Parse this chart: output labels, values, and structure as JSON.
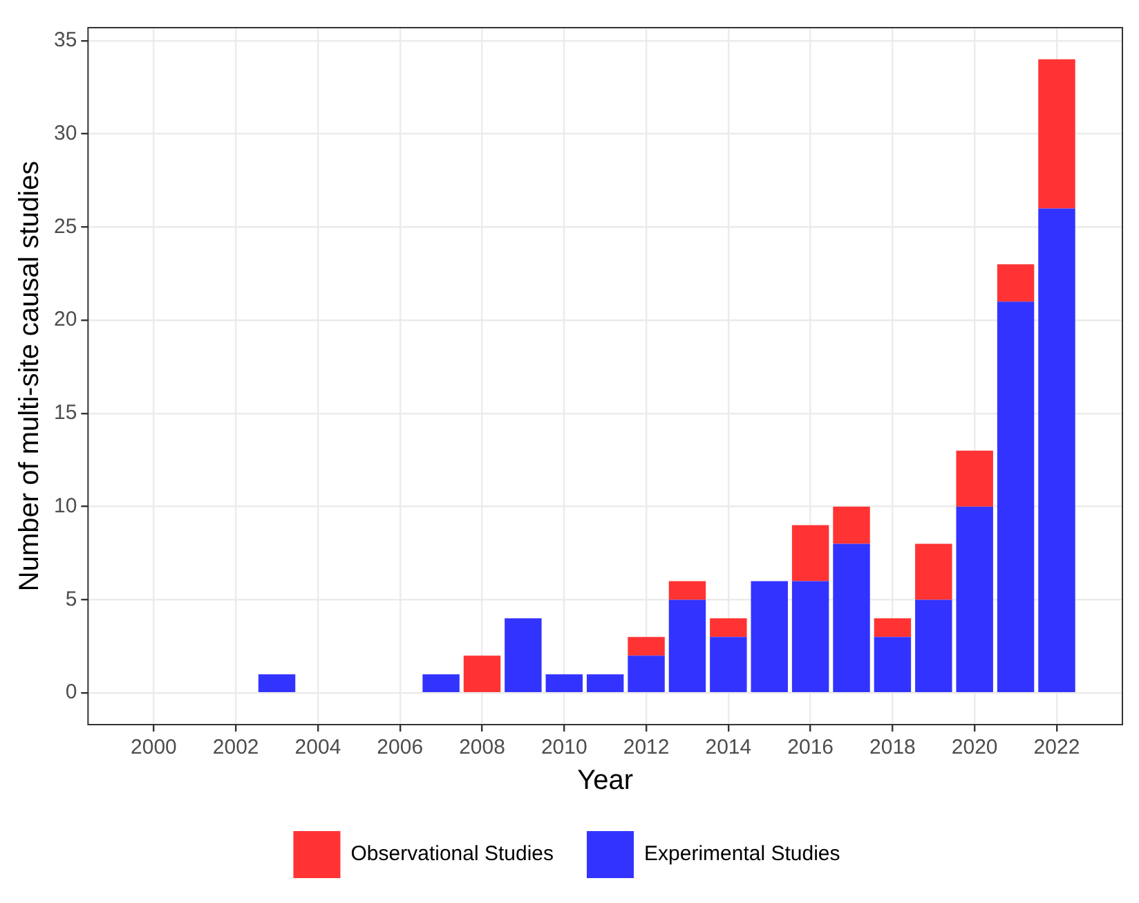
{
  "chart_data": {
    "type": "bar",
    "stacked": true,
    "xlabel": "Year",
    "ylabel": "Number of multi-site causal studies",
    "x": [
      2000,
      2001,
      2002,
      2003,
      2004,
      2005,
      2006,
      2007,
      2008,
      2009,
      2010,
      2011,
      2012,
      2013,
      2014,
      2015,
      2016,
      2017,
      2018,
      2019,
      2020,
      2021,
      2022
    ],
    "series": [
      {
        "name": "Experimental Studies",
        "color": "#3333ff",
        "values": [
          0,
          0,
          0,
          1,
          0,
          0,
          0,
          1,
          0,
          4,
          1,
          1,
          2,
          5,
          3,
          6,
          6,
          8,
          3,
          5,
          10,
          21,
          26
        ]
      },
      {
        "name": "Observational Studies",
        "color": "#ff3333",
        "values": [
          0,
          0,
          0,
          0,
          0,
          0,
          0,
          0,
          2,
          0,
          0,
          0,
          1,
          1,
          1,
          0,
          3,
          2,
          1,
          3,
          3,
          2,
          8
        ]
      }
    ],
    "xlim": [
      1998.4,
      2023.6
    ],
    "xticks": [
      2000,
      2002,
      2004,
      2006,
      2008,
      2010,
      2012,
      2014,
      2016,
      2018,
      2020,
      2022
    ],
    "ylim": [
      -1.7,
      35.7
    ],
    "yticks": [
      0,
      5,
      10,
      15,
      20,
      25,
      30,
      35
    ],
    "grid": true,
    "legend": "bottom"
  }
}
